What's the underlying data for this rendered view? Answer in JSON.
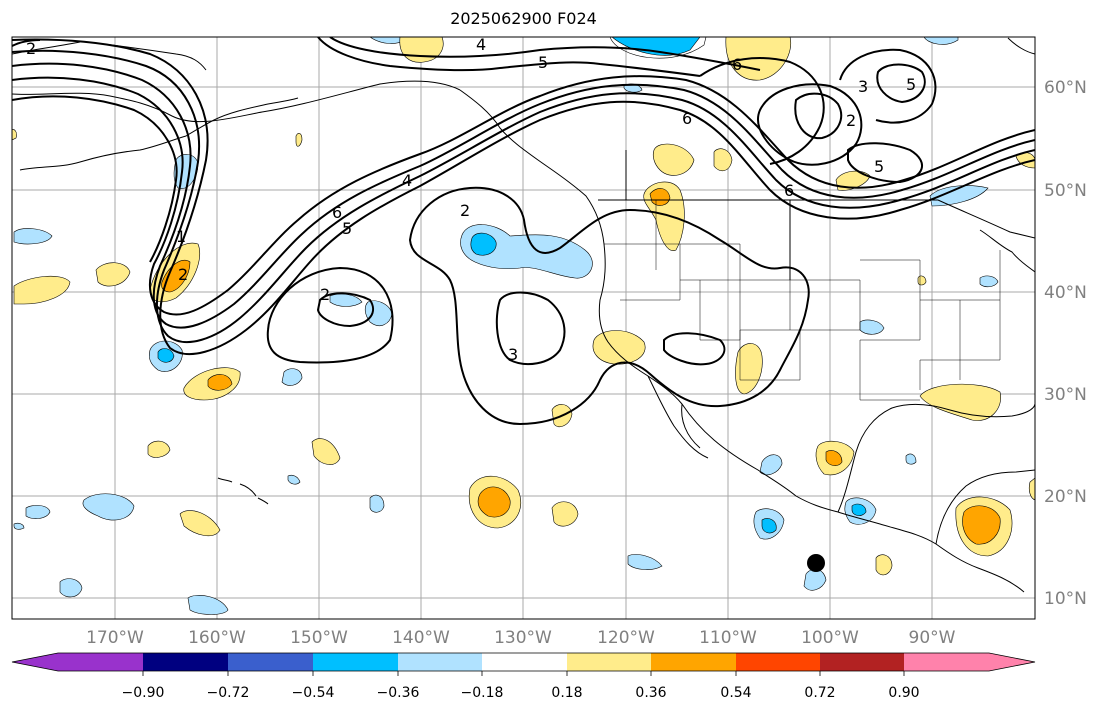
{
  "title": "2025062900 F024",
  "longitude_labels": [
    "170°W",
    "160°W",
    "150°W",
    "140°W",
    "130°W",
    "120°W",
    "110°W",
    "100°W",
    "90°W"
  ],
  "latitude_labels": [
    "60°N",
    "50°N",
    "40°N",
    "30°N",
    "20°N",
    "10°N"
  ],
  "contour_labels": [
    "2",
    "4",
    "5",
    "6",
    "3",
    "5",
    "2",
    "6",
    "4",
    "6",
    "5",
    "1",
    "2",
    "2",
    "3",
    "2",
    "6",
    "5"
  ],
  "colorbar": {
    "tick_labels": [
      "−0.90",
      "−0.72",
      "−0.54",
      "−0.36",
      "−0.18",
      "0.18",
      "0.36",
      "0.54",
      "0.72",
      "0.90"
    ],
    "colors": [
      "#9932cc",
      "#000080",
      "#3a5fcd",
      "#00bfff",
      "#b0e2ff",
      "#ffffff",
      "#ffec8b",
      "#ffa500",
      "#ff4500",
      "#b22222",
      "#ff82ab"
    ]
  },
  "marker": {
    "label": "black-dot",
    "color": "#000000"
  }
}
